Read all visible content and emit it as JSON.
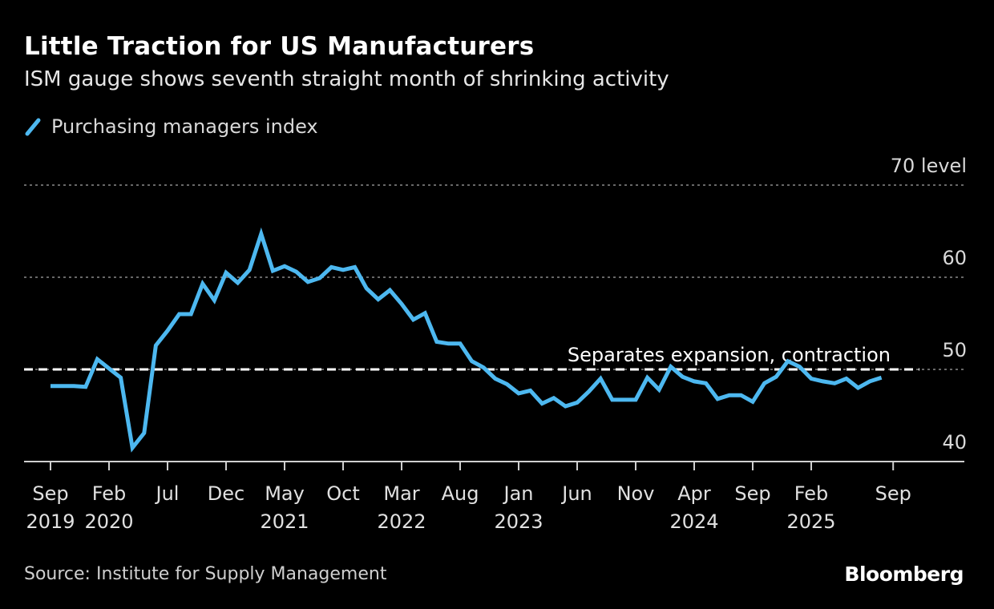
{
  "header": {
    "title": "Little Traction for US Manufacturers",
    "subtitle": "ISM gauge shows seventh straight month of shrinking activity"
  },
  "legend": {
    "label": "Purchasing managers index",
    "color": "#4db8f0",
    "icon": "diagonal-line-icon"
  },
  "footer": {
    "source": "Source: Institute for Supply Management",
    "brand": "Bloomberg"
  },
  "chart_data": {
    "type": "line",
    "title": "Little Traction for US Manufacturers",
    "subtitle": "ISM gauge shows seventh straight month of shrinking activity",
    "xlabel": "",
    "ylabel": "",
    "ylim": [
      40,
      70
    ],
    "y_ticks": [
      {
        "value": 70,
        "label": "70 level"
      },
      {
        "value": 60,
        "label": "60"
      },
      {
        "value": 50,
        "label": "50"
      },
      {
        "value": 40,
        "label": "40"
      }
    ],
    "grid": true,
    "legend_position": "top-left",
    "x_start": "2019-09",
    "x_ticks": [
      {
        "month_index": 0,
        "label": "Sep",
        "year": "2019"
      },
      {
        "month_index": 5,
        "label": "Feb",
        "year": "2020"
      },
      {
        "month_index": 10,
        "label": "Jul",
        "year": ""
      },
      {
        "month_index": 15,
        "label": "Dec",
        "year": ""
      },
      {
        "month_index": 20,
        "label": "May",
        "year": "2021"
      },
      {
        "month_index": 25,
        "label": "Oct",
        "year": ""
      },
      {
        "month_index": 30,
        "label": "Mar",
        "year": "2022"
      },
      {
        "month_index": 35,
        "label": "Aug",
        "year": ""
      },
      {
        "month_index": 40,
        "label": "Jan",
        "year": "2023"
      },
      {
        "month_index": 45,
        "label": "Jun",
        "year": ""
      },
      {
        "month_index": 50,
        "label": "Nov",
        "year": ""
      },
      {
        "month_index": 55,
        "label": "Apr",
        "year": "2024"
      },
      {
        "month_index": 60,
        "label": "Sep",
        "year": ""
      },
      {
        "month_index": 65,
        "label": "Feb",
        "year": "2025"
      },
      {
        "month_index": 72,
        "label": "Sep",
        "year": ""
      }
    ],
    "x_range_months": [
      -3,
      77
    ],
    "reference_line": {
      "value": 50,
      "label": "Separates expansion, contraction"
    },
    "series": [
      {
        "name": "Purchasing managers index",
        "color": "#4db8f0",
        "values": [
          48.2,
          48.2,
          48.2,
          48.1,
          51.1,
          50.1,
          49.1,
          41.5,
          43.1,
          52.6,
          54.2,
          56.0,
          56.0,
          59.3,
          57.5,
          60.5,
          59.4,
          60.8,
          64.7,
          60.7,
          61.2,
          60.6,
          59.5,
          59.9,
          61.1,
          60.8,
          61.1,
          58.8,
          57.6,
          58.6,
          57.1,
          55.4,
          56.1,
          53.0,
          52.8,
          52.8,
          50.9,
          50.2,
          49.0,
          48.4,
          47.4,
          47.7,
          46.3,
          46.9,
          46.0,
          46.4,
          47.6,
          49.0,
          46.7,
          46.7,
          46.7,
          49.1,
          47.8,
          50.3,
          49.2,
          48.7,
          48.5,
          46.8,
          47.2,
          47.2,
          46.5,
          48.5,
          49.2,
          50.9,
          50.3,
          49.0,
          48.7,
          48.5,
          49.0,
          48.0,
          48.7,
          49.1
        ]
      }
    ]
  }
}
